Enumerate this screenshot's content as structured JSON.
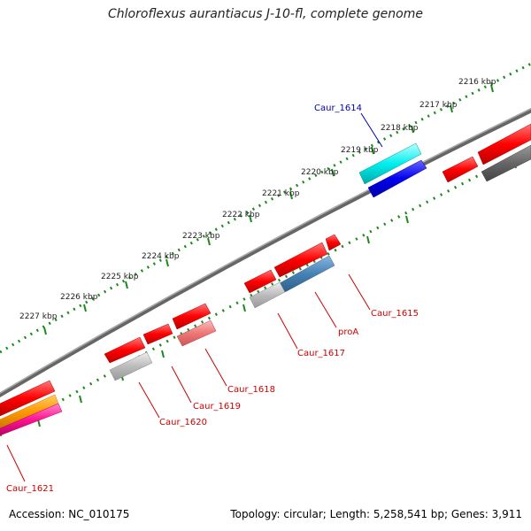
{
  "title": "Chloroflexus aurantiacus J-10-fl, complete genome",
  "accession": "Accession: NC_010175",
  "summary": "Topology: circular; Length: 5,258,541 bp; Genes: 3,911",
  "kbp_labels": [
    "2216 kbp",
    "2217 kbp",
    "2218 kbp",
    "2219 kbp",
    "2220 kbp",
    "2221 kbp",
    "2222 kbp",
    "2223 kbp",
    "2224 kbp",
    "2225 kbp",
    "2226 kbp",
    "2227 kbp"
  ],
  "gene_labels": [
    "Caur_1614",
    "Caur_1615",
    "proA",
    "Caur_1617",
    "Caur_1618",
    "Caur_1619",
    "Caur_1620",
    "Caur_1621"
  ],
  "colors": {
    "highlight_label": "#0000aa",
    "gene_label": "#cc0000",
    "tick": "#1a8a1a",
    "backbone": "#777777"
  }
}
